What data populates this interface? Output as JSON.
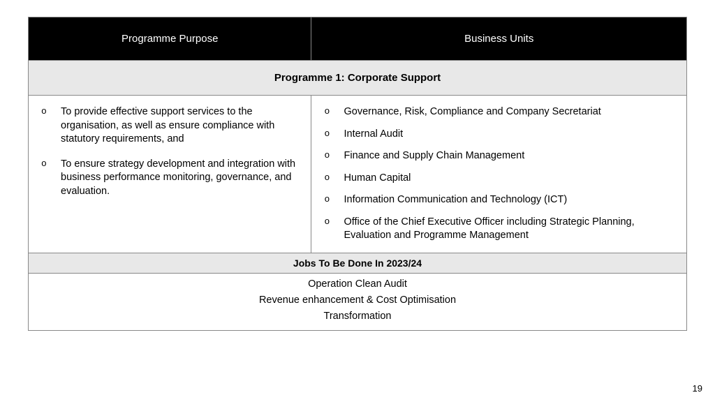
{
  "table": {
    "headers": {
      "col1": "Programme Purpose",
      "col2": "Business Units"
    },
    "programme_title": "Programme 1: Corporate Support",
    "purpose_items": [
      "To provide effective support services to the organisation, as well as ensure compliance with statutory requirements, and",
      "To ensure strategy development and integration with business performance monitoring, governance, and evaluation."
    ],
    "business_units": [
      "Governance, Risk, Compliance and Company Secretariat",
      "Internal Audit",
      "Finance and Supply Chain Management",
      "Human Capital",
      "Information Communication and Technology (ICT)",
      "Office of the Chief Executive Officer including Strategic Planning, Evaluation and Programme Management"
    ],
    "jobs_header": "Jobs To Be Done In 2023/24",
    "jobs": [
      "Operation Clean Audit",
      "Revenue enhancement & Cost Optimisation",
      "Transformation"
    ]
  },
  "layout": {
    "col1_width_pct": 43,
    "col2_width_pct": 57
  },
  "colors": {
    "header_bg": "#000000",
    "header_text": "#ffffff",
    "section_bg": "#e8e8e8",
    "border": "#888888",
    "body_bg": "#ffffff",
    "text": "#000000"
  },
  "page_number": "19"
}
